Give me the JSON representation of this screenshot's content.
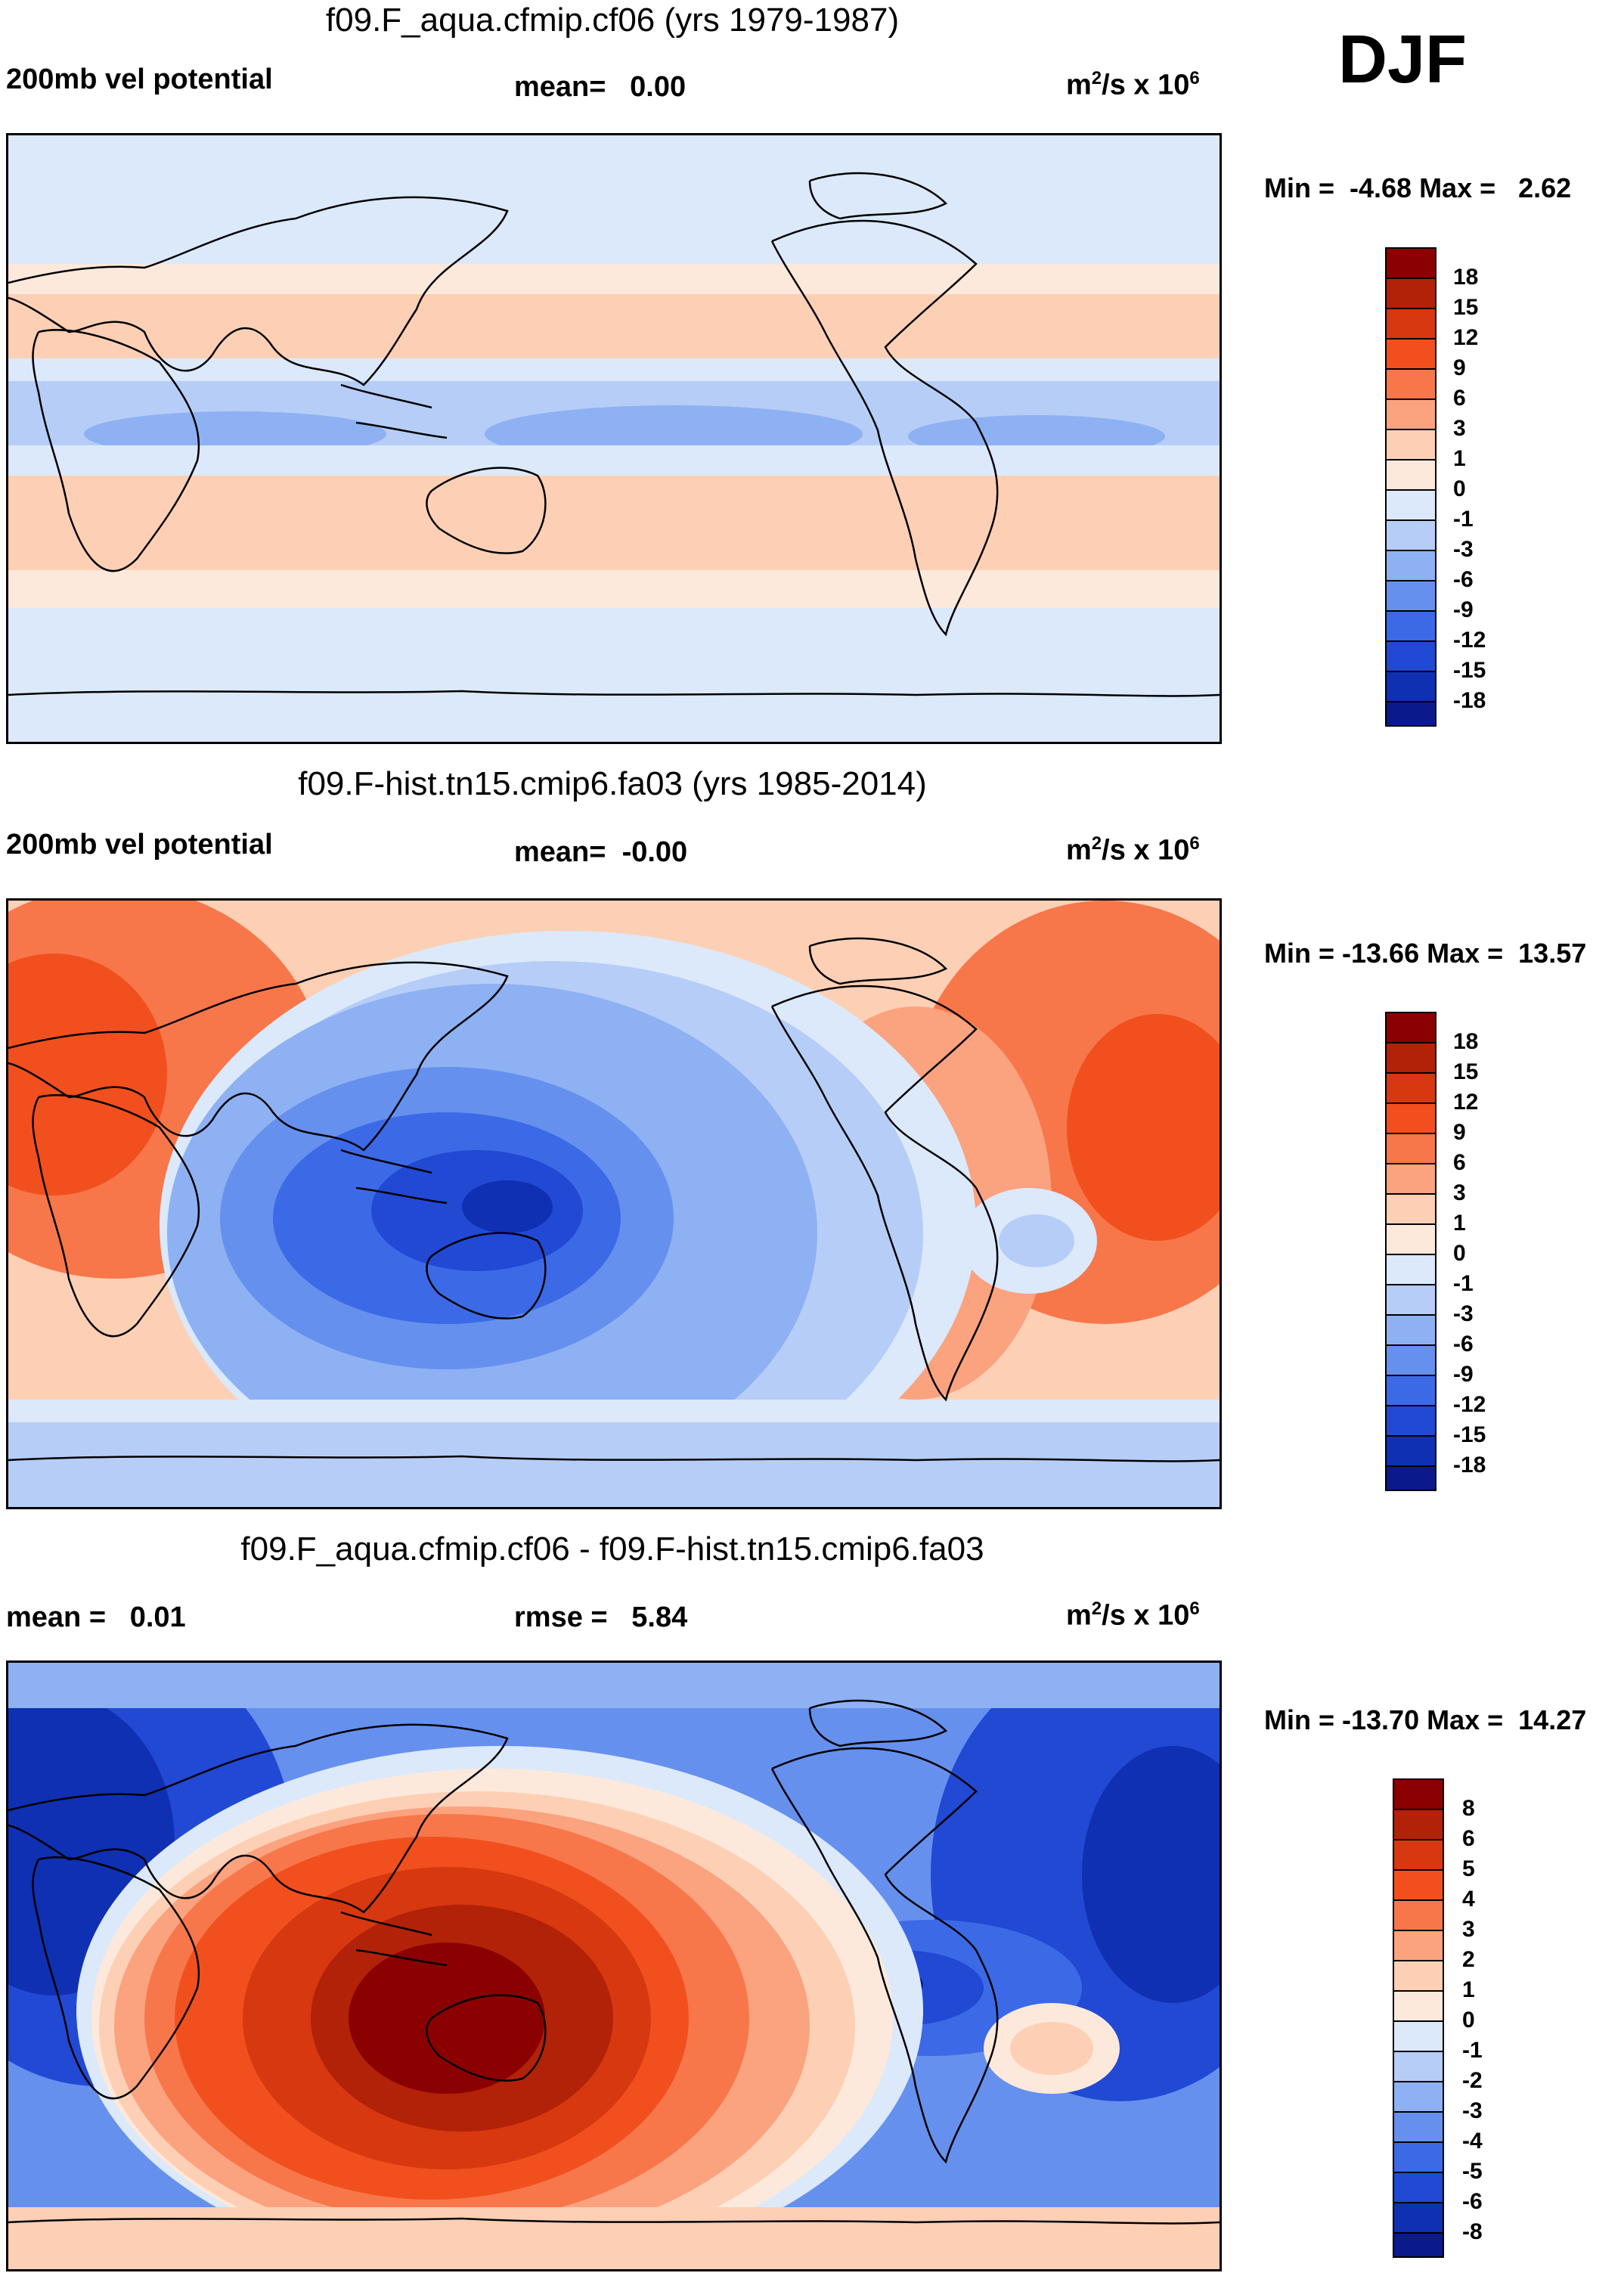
{
  "figure": {
    "season": "DJF",
    "units_prefix": "m",
    "units_sup": "2",
    "units_mid": "/s x 10",
    "units_sup2": "6"
  },
  "panels": [
    {
      "title": "f09.F_aqua.cfmip.cf06 (yrs 1979-1987)",
      "left_label": "200mb vel potential",
      "center_label": "mean=   0.00",
      "minmax": "Min =  -4.68 Max =   2.62"
    },
    {
      "title": "f09.F-hist.tn15.cmip6.fa03 (yrs 1985-2014)",
      "left_label": "200mb vel potential",
      "center_label": "mean=  -0.00",
      "minmax": "Min = -13.66 Max =  13.57"
    },
    {
      "title": "f09.F_aqua.cfmip.cf06 - f09.F-hist.tn15.cmip6.fa03",
      "left_label": "mean =   0.01",
      "center_label": "rmse =   5.84",
      "minmax": "Min = -13.70 Max =  14.27"
    }
  ],
  "colorbars": {
    "colors": [
      "#8b0000",
      "#b22208",
      "#d7380f",
      "#f24f1f",
      "#f7774a",
      "#fba27f",
      "#fdd0b5",
      "#fde9db",
      "#dbe9fb",
      "#b6cdf7",
      "#8eb1f3",
      "#6690ee",
      "#3c6ae6",
      "#2149d4",
      "#0f30b2",
      "#0a1a8c"
    ],
    "main_ticks": [
      "18",
      "15",
      "12",
      "9",
      "6",
      "3",
      "1",
      "0",
      "-1",
      "-3",
      "-6",
      "-9",
      "-12",
      "-15",
      "-18"
    ],
    "diff_ticks": [
      "8",
      "6",
      "5",
      "4",
      "3",
      "2",
      "1",
      "0",
      "-1",
      "-2",
      "-3",
      "-4",
      "-5",
      "-6",
      "-8"
    ]
  },
  "chart_data": [
    {
      "type": "heatmap",
      "title": "f09.F_aqua.cfmip.cf06 (yrs 1979-1987)",
      "variable": "200mb vel potential",
      "units": "m^2/s x 10^6",
      "mean": 0.0,
      "min": -4.68,
      "max": 2.62,
      "levels": [
        -18,
        -15,
        -12,
        -9,
        -6,
        -3,
        -1,
        0,
        1,
        3,
        6,
        9,
        12,
        15,
        18
      ],
      "pattern": "zonally symmetric bands: negative near equator, positive in subtropics, slightly negative at high latitudes"
    },
    {
      "type": "heatmap",
      "title": "f09.F-hist.tn15.cmip6.fa03 (yrs 1985-2014)",
      "variable": "200mb vel potential",
      "units": "m^2/s x 10^6",
      "mean": -0.0,
      "min": -13.66,
      "max": 13.57,
      "levels": [
        -18,
        -15,
        -12,
        -9,
        -6,
        -3,
        -1,
        0,
        1,
        3,
        6,
        9,
        12,
        15,
        18
      ],
      "pattern": "strong negative over Maritime Continent / western Pacific, positive over Africa, Middle East and Atlantic"
    },
    {
      "type": "heatmap",
      "title": "f09.F_aqua.cfmip.cf06 - f09.F-hist.tn15.cmip6.fa03",
      "units": "m^2/s x 10^6",
      "mean": 0.01,
      "rmse": 5.84,
      "min": -13.7,
      "max": 14.27,
      "levels": [
        -8,
        -6,
        -5,
        -4,
        -3,
        -2,
        -1,
        0,
        1,
        2,
        3,
        4,
        5,
        6,
        8
      ],
      "pattern": "positive over Australia / western Pacific, negative over Africa, Atlantic and South America"
    }
  ]
}
